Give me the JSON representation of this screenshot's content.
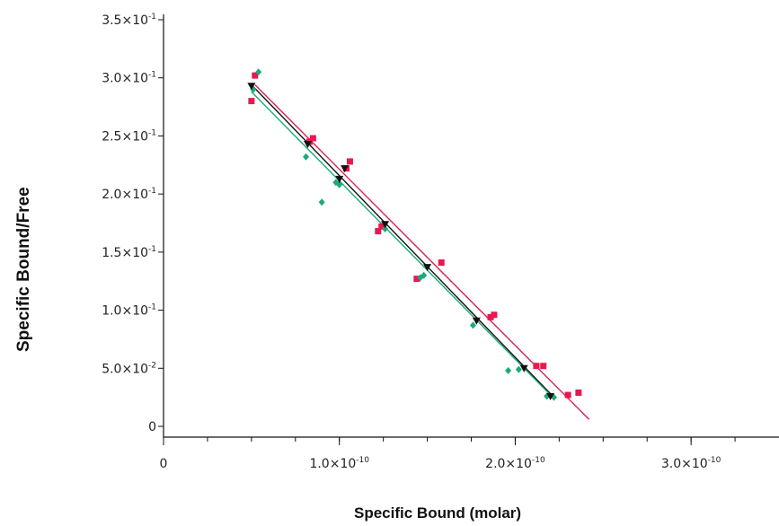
{
  "chart_data": {
    "type": "scatter",
    "xlabel": "Specific Bound (molar)",
    "ylabel": "Specific Bound/Free",
    "xlim": [
      0,
      3.5e-10
    ],
    "ylim": [
      0,
      0.35
    ],
    "y_ticks": [
      {
        "value": 0,
        "label": "0",
        "sup": ""
      },
      {
        "value": 0.05,
        "label": "5.0×10",
        "sup": "-2"
      },
      {
        "value": 0.1,
        "label": "1.0×10",
        "sup": "-1"
      },
      {
        "value": 0.15,
        "label": "1.5×10",
        "sup": "-1"
      },
      {
        "value": 0.2,
        "label": "2.0×10",
        "sup": "-1"
      },
      {
        "value": 0.25,
        "label": "2.5×10",
        "sup": "-1"
      },
      {
        "value": 0.3,
        "label": "3.0×10",
        "sup": "-1"
      },
      {
        "value": 0.35,
        "label": "3.5×10",
        "sup": "-1"
      }
    ],
    "x_ticks": [
      {
        "value": 0,
        "label": "0",
        "sup": ""
      },
      {
        "value": 1e-10,
        "label": "1.0×10",
        "sup": "-10"
      },
      {
        "value": 2e-10,
        "label": "2.0×10",
        "sup": "-10"
      },
      {
        "value": 3e-10,
        "label": "3.0×10",
        "sup": "-10"
      }
    ],
    "x_minor_step": 2.5e-11,
    "series": [
      {
        "color": "#e8194f",
        "marker": "square",
        "points": [
          [
            5e-11,
            0.28
          ],
          [
            5.2e-11,
            0.302
          ],
          [
            8.3e-11,
            0.245
          ],
          [
            8.5e-11,
            0.248
          ],
          [
            1.04e-10,
            0.222
          ],
          [
            1.06e-10,
            0.228
          ],
          [
            1.22e-10,
            0.168
          ],
          [
            1.24e-10,
            0.172
          ],
          [
            1.44e-10,
            0.127
          ],
          [
            1.58e-10,
            0.141
          ],
          [
            1.86e-10,
            0.094
          ],
          [
            1.88e-10,
            0.096
          ],
          [
            2.12e-10,
            0.052
          ],
          [
            2.16e-10,
            0.052
          ],
          [
            2.3e-10,
            0.027
          ],
          [
            2.36e-10,
            0.029
          ]
        ],
        "fit": [
          [
            5.2e-11,
            0.294
          ],
          [
            2.42e-10,
            0.006
          ]
        ]
      },
      {
        "color": "#111111",
        "marker": "triangle-down",
        "points": [
          [
            5e-11,
            0.293
          ],
          [
            8.2e-11,
            0.243
          ],
          [
            1e-10,
            0.213
          ],
          [
            1.03e-10,
            0.222
          ],
          [
            1.26e-10,
            0.174
          ],
          [
            1.5e-10,
            0.137
          ],
          [
            1.78e-10,
            0.091
          ],
          [
            2.05e-10,
            0.05
          ],
          [
            2.2e-10,
            0.026
          ]
        ],
        "fit": [
          [
            5e-11,
            0.294
          ],
          [
            2.22e-10,
            0.025
          ]
        ]
      },
      {
        "color": "#1aaa7c",
        "marker": "diamond",
        "points": [
          [
            5.1e-11,
            0.29
          ],
          [
            5.4e-11,
            0.305
          ],
          [
            8.1e-11,
            0.232
          ],
          [
            9e-11,
            0.193
          ],
          [
            9.8e-11,
            0.21
          ],
          [
            1e-10,
            0.208
          ],
          [
            1.26e-10,
            0.17
          ],
          [
            1.46e-10,
            0.128
          ],
          [
            1.48e-10,
            0.13
          ],
          [
            1.76e-10,
            0.087
          ],
          [
            1.96e-10,
            0.048
          ],
          [
            2.02e-10,
            0.049
          ],
          [
            2.18e-10,
            0.026
          ],
          [
            2.22e-10,
            0.025
          ]
        ],
        "fit": [
          [
            5e-11,
            0.288
          ],
          [
            2.22e-10,
            0.024
          ]
        ]
      }
    ]
  }
}
